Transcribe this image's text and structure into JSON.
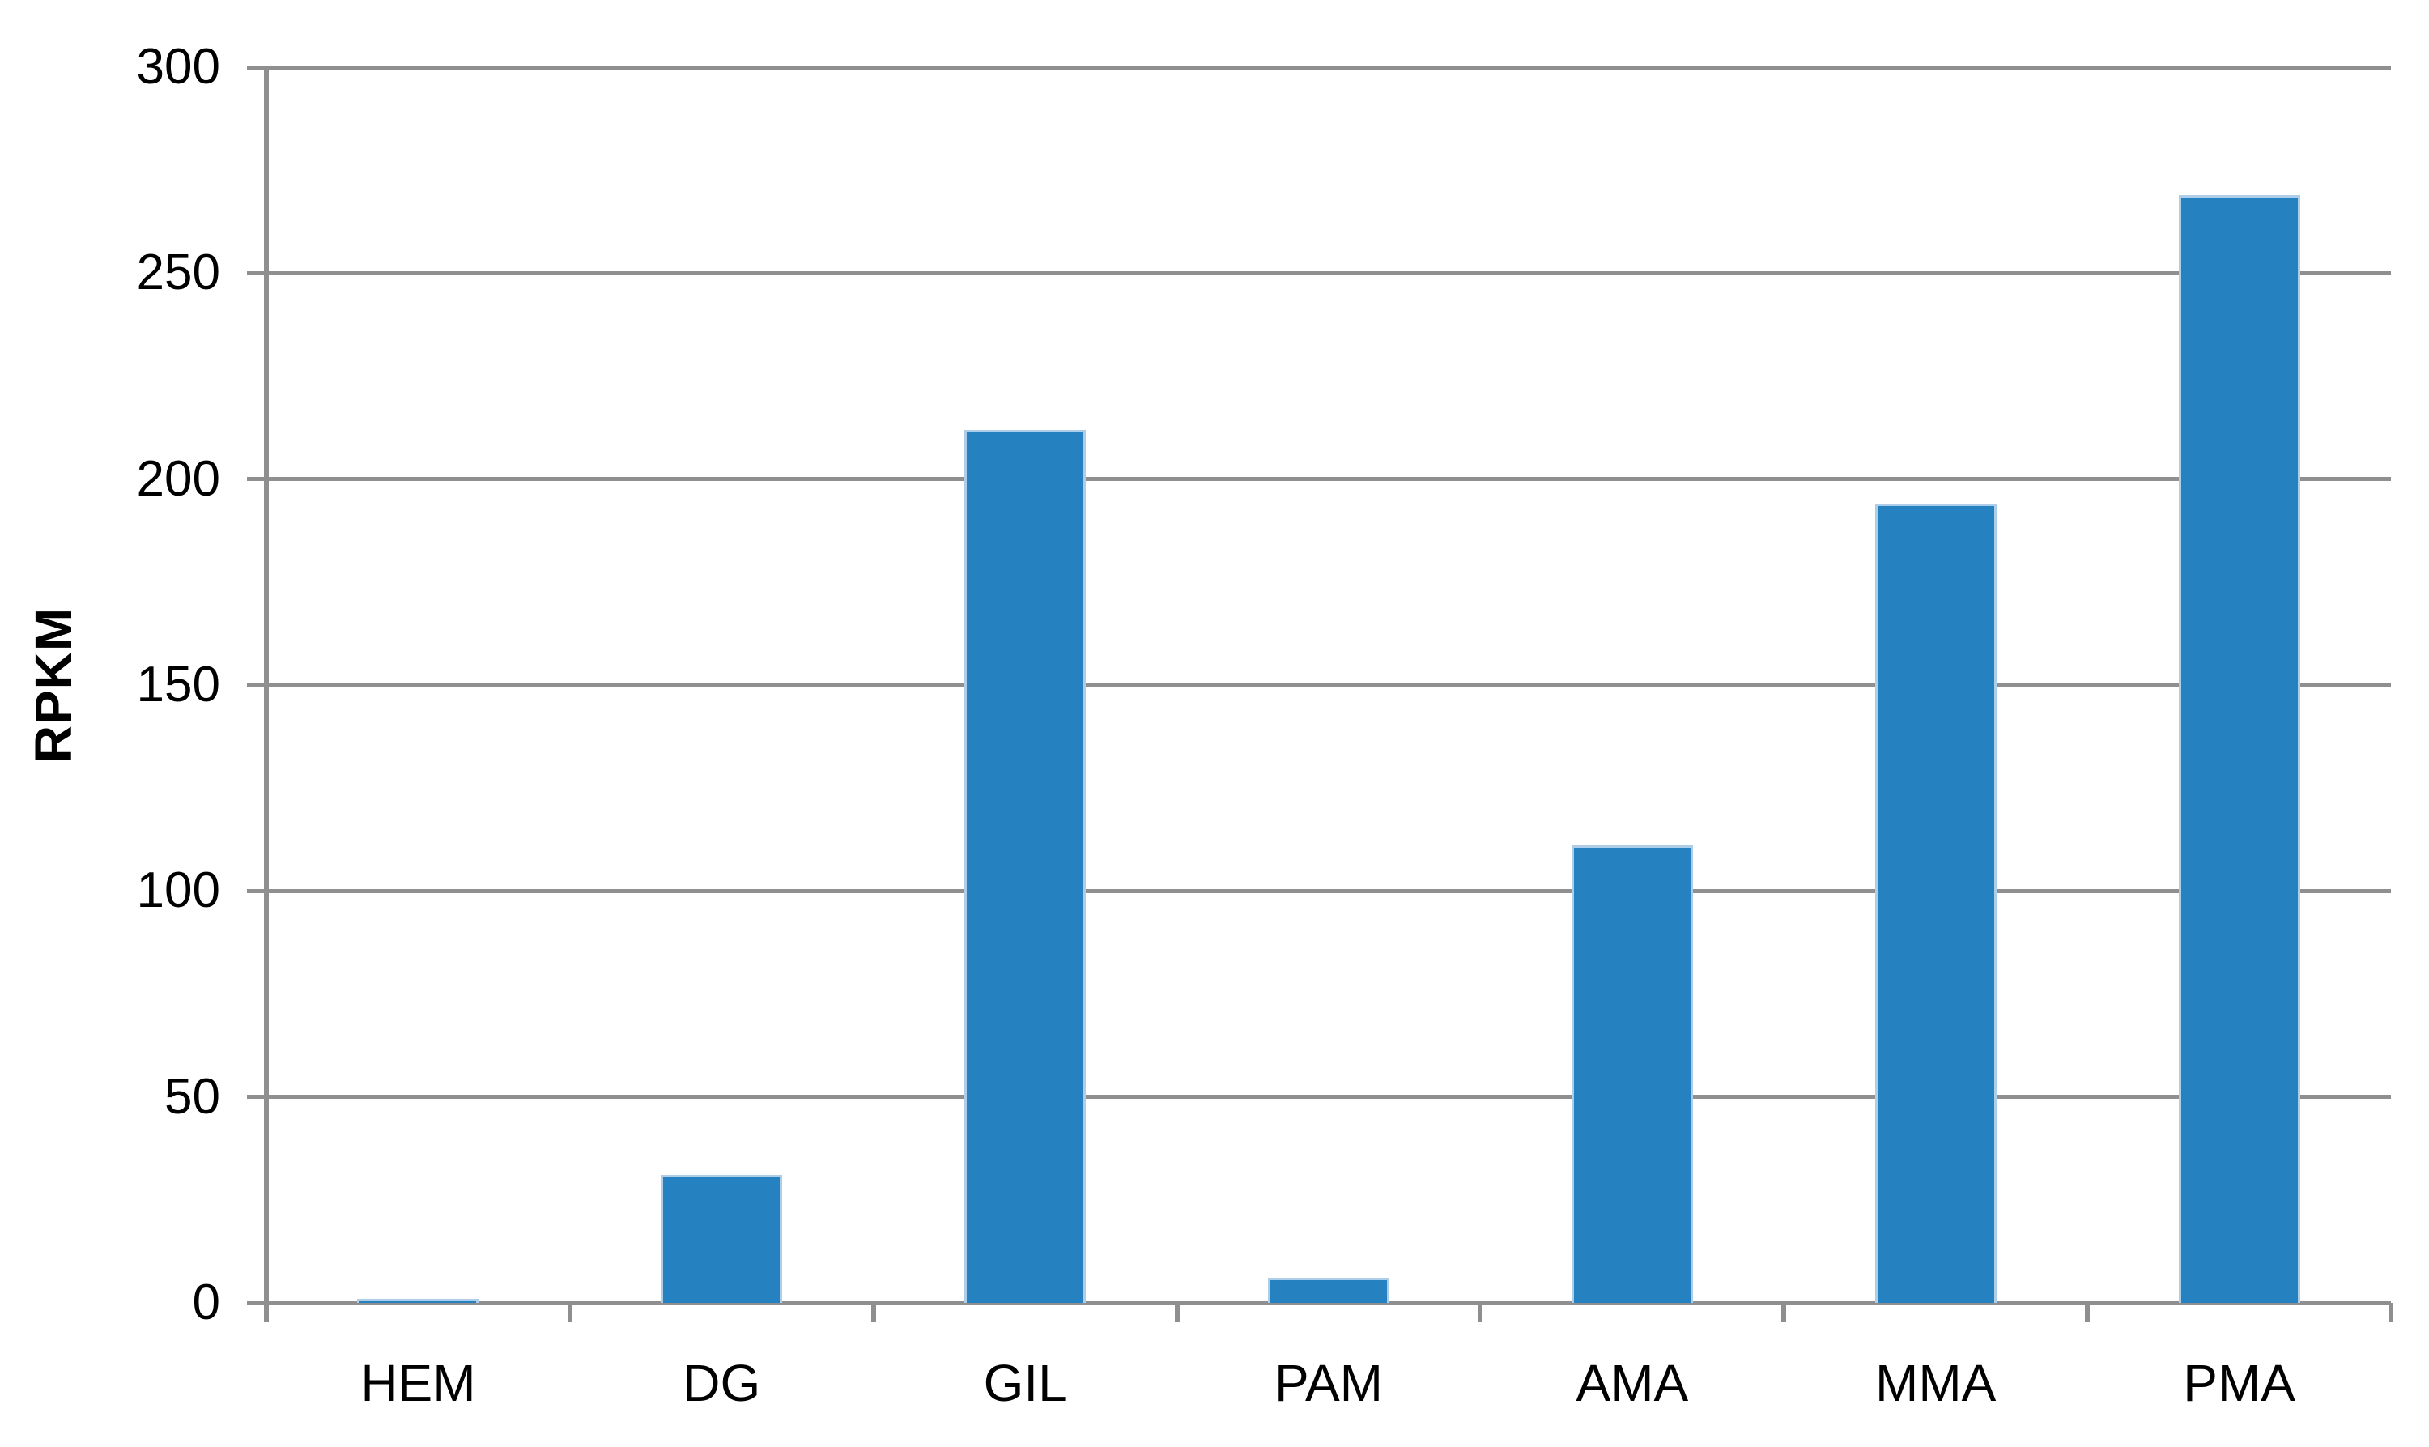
{
  "chart_data": {
    "type": "bar",
    "title": "",
    "categories": [
      "HEM",
      "DG",
      "GIL",
      "PAM",
      "AMA",
      "MMA",
      "PMA"
    ],
    "values": [
      1,
      31,
      212,
      6,
      111,
      194,
      269
    ],
    "xlabel": "",
    "ylabel": "RPKM",
    "ylim": [
      0,
      300
    ],
    "yticks": [
      0,
      50,
      100,
      150,
      200,
      250,
      300
    ],
    "grid": "horizontal-only",
    "legend": "none",
    "colors": {
      "bar_fill": "#2681C1",
      "bar_edge": "#AECDE9",
      "grid_axis": "#8F8F8F",
      "text": "#000000",
      "background": "#FFFFFF"
    }
  }
}
